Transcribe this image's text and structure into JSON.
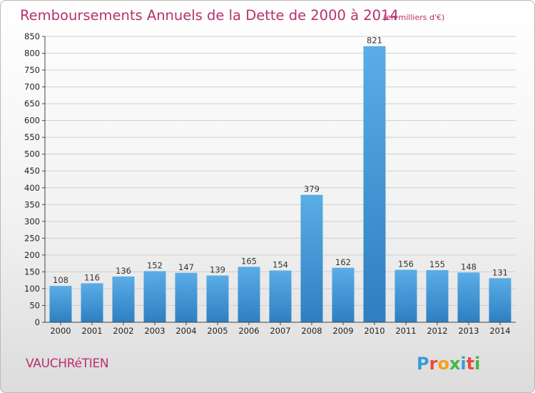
{
  "header": {
    "title": "Remboursements Annuels de la Dette de 2000 à 2014",
    "unit": "(en milliers d'€)"
  },
  "commune": "VAUCHRéTIEN",
  "logo": {
    "letters": [
      "P",
      "r",
      "o",
      "x",
      "i",
      "t",
      "i"
    ],
    "colors": [
      "#3a9bd8",
      "#e84c3d",
      "#f2a31b",
      "#45b649",
      "#3a9bd8",
      "#e84c3d",
      "#45b649"
    ]
  },
  "colors": {
    "bar_top": "#5aade6",
    "bar_bottom": "#2e7fc1",
    "grid": "#cfcfcf",
    "title": "#b8306f"
  },
  "chart_data": {
    "type": "bar",
    "title": "Remboursements Annuels de la Dette de 2000 à 2014",
    "categories": [
      "2000",
      "2001",
      "2002",
      "2003",
      "2004",
      "2005",
      "2006",
      "2007",
      "2008",
      "2009",
      "2010",
      "2011",
      "2012",
      "2013",
      "2014"
    ],
    "values": [
      108,
      116,
      136,
      152,
      147,
      139,
      165,
      154,
      379,
      162,
      821,
      156,
      155,
      148,
      131
    ],
    "ylim": [
      0,
      850
    ],
    "yticks": [
      0,
      50,
      100,
      150,
      200,
      250,
      300,
      350,
      400,
      450,
      500,
      550,
      600,
      650,
      700,
      750,
      800,
      850
    ],
    "grid": true
  }
}
